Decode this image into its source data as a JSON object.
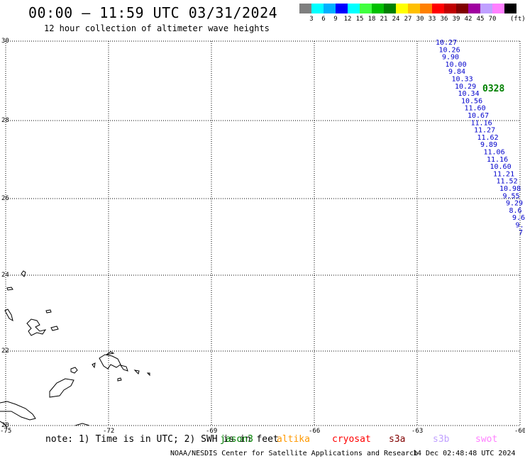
{
  "title": "00:00 – 11:59 UTC 03/31/2024",
  "subtitle": "12 hour collection of altimeter wave heights",
  "legend": {
    "colors": [
      "#7f7f7f",
      "#00ffff",
      "#00b0ff",
      "#0000ff",
      "#00ffff",
      "#40ff40",
      "#00c000",
      "#008000",
      "#ffff00",
      "#ffc000",
      "#ff8000",
      "#ff0000",
      "#c00000",
      "#800000",
      "#a000a0",
      "#c0a0ff",
      "#ff80ff",
      "#000000"
    ],
    "labels": [
      "3",
      "6",
      "9",
      "12",
      "15",
      "18",
      "21",
      "24",
      "27",
      "30",
      "33",
      "36",
      "39",
      "42",
      "45",
      "70"
    ],
    "unit": "(ft)"
  },
  "axes": {
    "y_labels": [
      "30",
      "28",
      "26",
      "24",
      "22",
      "20"
    ],
    "x_labels": [
      "-75",
      "-72",
      "-69",
      "-66",
      "-63",
      "-60"
    ],
    "lon_range": [
      -75,
      -60
    ],
    "lat_range": [
      20,
      30
    ]
  },
  "track": {
    "pass_label": "0328",
    "pass_color": "#008000",
    "values": [
      "10.27",
      "10.26",
      "9.90",
      "10.00",
      "9.84",
      "10.33",
      "10.29",
      "10.34",
      "10.56",
      "11.60",
      "10.67",
      "11.16",
      "11.27",
      "11.62",
      "9.89",
      "11.06",
      "11.16",
      "10.60",
      "11.21",
      "11.52",
      "10.98",
      "9.55",
      "9.29",
      "8.6",
      "9.6",
      "9.",
      "7"
    ],
    "colors": [
      "#0000cc",
      "#0000cc",
      "#0000cc",
      "#0000cc",
      "#0000cc",
      "#0000cc",
      "#0000cc",
      "#0000cc",
      "#0000cc",
      "#0000cc",
      "#0000cc",
      "#0000cc",
      "#0000cc",
      "#0000cc",
      "#0000cc",
      "#0000cc",
      "#0000cc",
      "#0000cc",
      "#0000cc",
      "#0000cc",
      "#0000cc",
      "#0000cc",
      "#0000cc",
      "#00a0ff",
      "#0000cc",
      "#0000cc",
      "#00a0ff"
    ]
  },
  "footer": {
    "note": "note: 1) Time is in UTC; 2) SWH is in feet",
    "satellites": [
      {
        "name": "jason3",
        "color": "#008000"
      },
      {
        "name": "altika",
        "color": "#ff9900"
      },
      {
        "name": "cryosat",
        "color": "#ff0000"
      },
      {
        "name": "s3a",
        "color": "#800000"
      },
      {
        "name": "s3b",
        "color": "#c0a0ff"
      },
      {
        "name": "swot",
        "color": "#ff80ff"
      }
    ],
    "credit": "NOAA/NESDIS Center for Satellite Applications and Research",
    "timestamp": "14 Dec 02:48:48 UTC 2024"
  }
}
